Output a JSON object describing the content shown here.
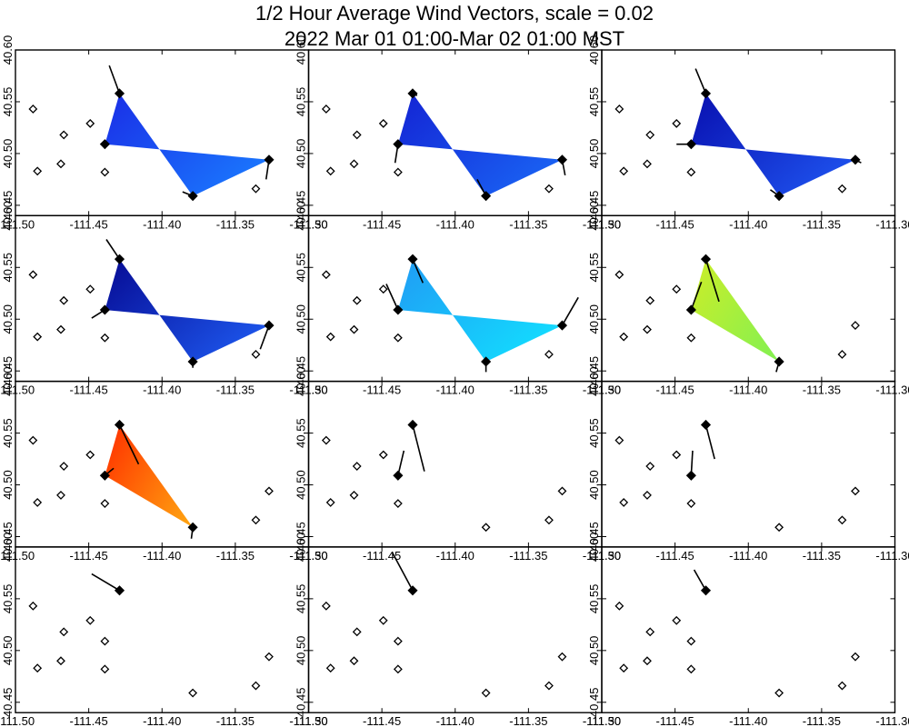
{
  "title_line1": "1/2 Hour Average Wind Vectors, scale =  0.02",
  "title_line2": "2022 Mar 01 01:00-Mar 02 01:00 MST",
  "chart_data": {
    "type": "small-multiples-map",
    "panels_rows": 4,
    "panels_cols": 3,
    "xlim": [
      -111.5,
      -111.3
    ],
    "ylim": [
      40.44,
      40.6
    ],
    "xticks": [
      -111.5,
      -111.45,
      -111.4,
      -111.35,
      -111.3
    ],
    "xtick_labels": [
      "-111.50",
      "-111.45",
      "-111.40",
      "-111.35",
      "-111.30"
    ],
    "yticks": [
      40.45,
      40.5,
      40.55,
      40.6
    ],
    "ytick_labels": [
      "40.45",
      "40.50",
      "40.55",
      "40.60"
    ],
    "stations": [
      {
        "lon": -111.488,
        "lat": 40.543
      },
      {
        "lon": -111.485,
        "lat": 40.483
      },
      {
        "lon": -111.467,
        "lat": 40.518
      },
      {
        "lon": -111.469,
        "lat": 40.49
      },
      {
        "lon": -111.449,
        "lat": 40.529
      },
      {
        "lon": -111.439,
        "lat": 40.482
      },
      {
        "lon": -111.439,
        "lat": 40.509
      },
      {
        "lon": -111.429,
        "lat": 40.558
      },
      {
        "lon": -111.379,
        "lat": 40.459
      },
      {
        "lon": -111.336,
        "lat": 40.466
      },
      {
        "lon": -111.327,
        "lat": 40.494
      }
    ],
    "panels": [
      {
        "active": [
          6,
          7,
          8,
          10
        ],
        "fill": [
          "#1a33e8",
          "#1a7bff"
        ],
        "vectors": [
          [
            7,
            -0.007,
            0.027
          ],
          [
            6,
            0,
            0
          ],
          [
            8,
            -0.007,
            0.004
          ],
          [
            10,
            -0.002,
            -0.019
          ]
        ]
      },
      {
        "active": [
          6,
          7,
          8,
          10
        ],
        "fill": [
          "#1428d6",
          "#1a66f5"
        ],
        "vectors": [
          [
            7,
            0.003,
            -0.002
          ],
          [
            6,
            -0.002,
            -0.018
          ],
          [
            8,
            -0.006,
            0.016
          ],
          [
            10,
            0.002,
            -0.015
          ]
        ]
      },
      {
        "active": [
          6,
          7,
          8,
          10
        ],
        "fill": [
          "#0a14b4",
          "#1f55f0"
        ],
        "vectors": [
          [
            7,
            -0.007,
            0.024
          ],
          [
            6,
            -0.01,
            0.0
          ],
          [
            8,
            -0.006,
            0.006
          ],
          [
            10,
            0.004,
            -0.003
          ]
        ]
      },
      {
        "active": [
          6,
          7,
          8,
          10
        ],
        "fill": [
          "#08109a",
          "#1e5af0"
        ],
        "vectors": [
          [
            7,
            -0.009,
            0.019
          ],
          [
            6,
            -0.009,
            -0.008
          ],
          [
            8,
            0.0,
            -0.006
          ],
          [
            10,
            -0.006,
            -0.023
          ]
        ]
      },
      {
        "active": [
          6,
          7,
          8,
          10
        ],
        "fill": [
          "#1fa0f5",
          "#12e0ff"
        ],
        "vectors": [
          [
            7,
            0.007,
            -0.023
          ],
          [
            6,
            -0.008,
            0.025
          ],
          [
            8,
            0.0,
            -0.01
          ],
          [
            10,
            0.011,
            0.027
          ]
        ]
      },
      {
        "active": [
          6,
          7,
          8
        ],
        "fill": [
          "#c8ee2a",
          "#86f050"
        ],
        "vectors": [
          [
            7,
            0.009,
            -0.041
          ],
          [
            6,
            0.007,
            0.027
          ],
          [
            8,
            -0.002,
            -0.01
          ]
        ]
      },
      {
        "active": [
          6,
          7,
          8
        ],
        "fill": [
          "#ff3500",
          "#ffa010"
        ],
        "vectors": [
          [
            7,
            0.013,
            -0.038
          ],
          [
            6,
            0.006,
            0.007
          ],
          [
            8,
            -0.001,
            -0.011
          ]
        ]
      },
      {
        "active": [
          6,
          7
        ],
        "fill": null,
        "vectors": [
          [
            7,
            0.008,
            -0.045
          ],
          [
            6,
            0.004,
            0.024
          ]
        ]
      },
      {
        "active": [
          6,
          7
        ],
        "fill": null,
        "vectors": [
          [
            7,
            0.006,
            -0.033
          ],
          [
            6,
            0.001,
            0.024
          ]
        ]
      },
      {
        "active": [
          7
        ],
        "fill": null,
        "vectors": [
          [
            7,
            -0.019,
            0.016
          ]
        ]
      },
      {
        "active": [
          7
        ],
        "fill": null,
        "vectors": [
          [
            7,
            -0.014,
            0.037
          ]
        ]
      },
      {
        "active": [
          7
        ],
        "fill": null,
        "vectors": [
          [
            7,
            -0.008,
            0.02
          ]
        ]
      }
    ]
  }
}
